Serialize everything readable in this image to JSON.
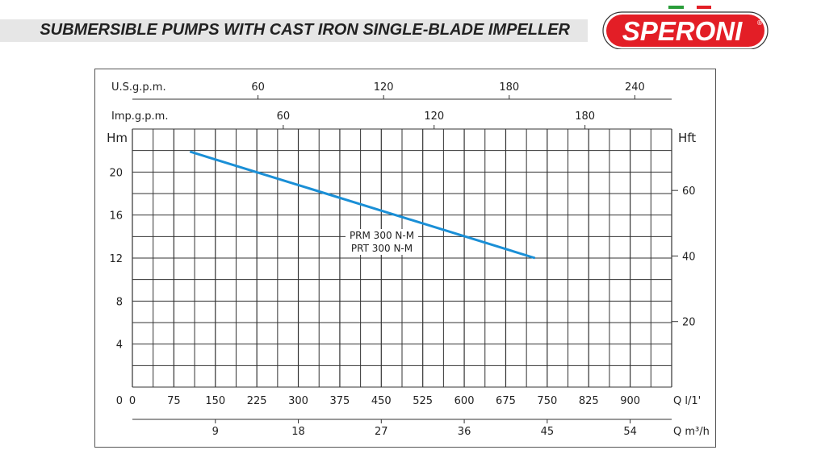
{
  "header": {
    "title": "SUBMERSIBLE PUMPS WITH CAST IRON SINGLE-BLADE IMPELLER",
    "brand": "SPERONI",
    "registered": "®"
  },
  "colors": {
    "curve": "#1a8fd6",
    "brand_red": "#e31e26"
  },
  "chart_data": {
    "type": "line",
    "xlabel": "Q l/1'",
    "ylabel": "Hm",
    "y2label": "Hft",
    "xlim": [
      0,
      975
    ],
    "ylim": [
      0,
      24
    ],
    "x_ticks": [
      0,
      75,
      150,
      225,
      300,
      375,
      450,
      525,
      600,
      675,
      750,
      825,
      900
    ],
    "y_ticks": [
      4,
      8,
      12,
      16,
      20
    ],
    "hft_ticks": [
      20,
      40,
      60
    ],
    "usgpm_label": "U.S.g.p.m.",
    "usgpm_ticks": [
      60,
      120,
      180,
      240
    ],
    "impgpm_label": "Imp.g.p.m.",
    "impgpm_ticks": [
      60,
      120,
      180
    ],
    "m3h_label": "Q m³/h",
    "m3h_ticks": [
      9,
      18,
      27,
      36,
      45,
      54
    ],
    "grid": true,
    "series": [
      {
        "name": "PRM 300 N-M / PRT 300 N-M",
        "labels": [
          "PRM 300 N-M",
          "PRT 300 N-M"
        ],
        "x": [
          104,
          728
        ],
        "y": [
          21.9,
          12
        ]
      }
    ]
  }
}
